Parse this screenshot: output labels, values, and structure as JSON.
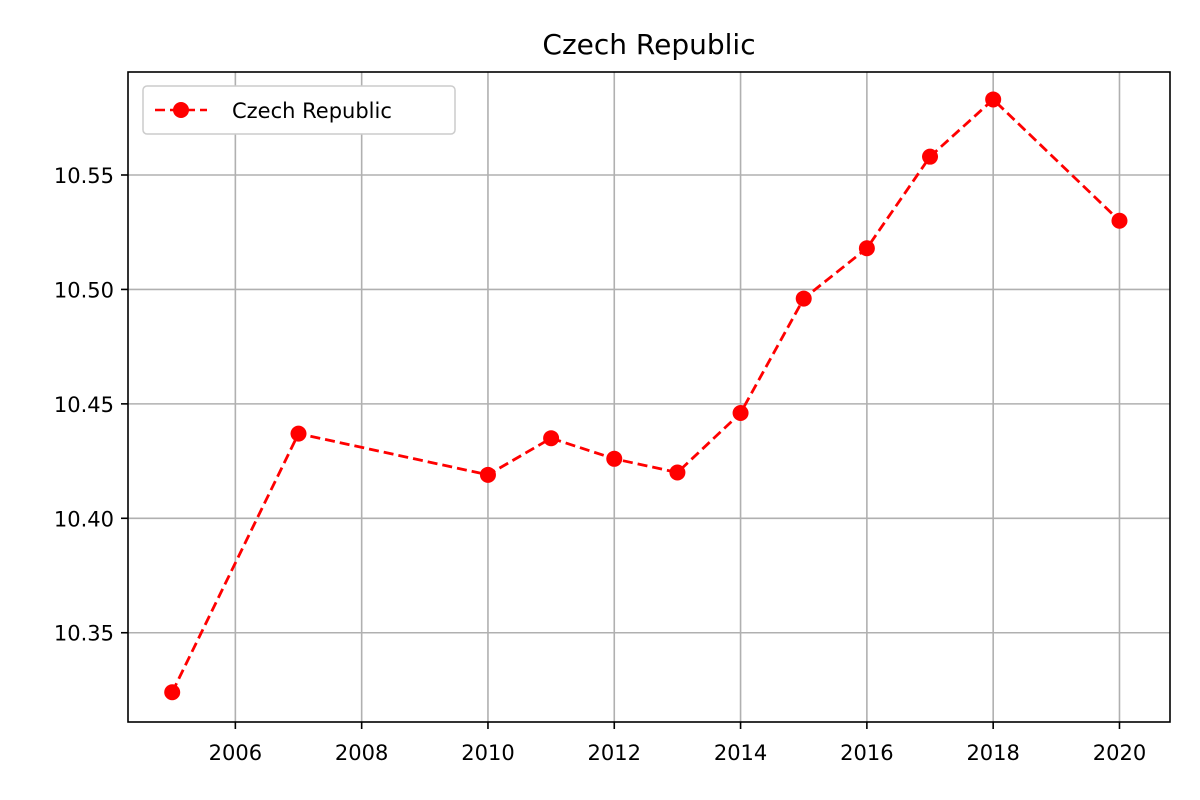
{
  "chart_data": {
    "type": "line",
    "title": "Czech Republic",
    "xlabel": "",
    "ylabel": "",
    "x_ticks": [
      2006,
      2008,
      2010,
      2012,
      2014,
      2016,
      2018,
      2020
    ],
    "y_ticks": [
      "10.35",
      "10.40",
      "10.45",
      "10.50",
      "10.55"
    ],
    "xlim": [
      2004.3,
      2020.8
    ],
    "ylim": [
      10.311,
      10.595
    ],
    "grid": true,
    "legend_position": "top-left",
    "series": [
      {
        "name": "Czech Republic",
        "color": "#ff0000",
        "line_style": "dashed",
        "marker": "circle",
        "x": [
          2005,
          2007,
          2010,
          2011,
          2012,
          2013,
          2014,
          2015,
          2016,
          2017,
          2018,
          2020
        ],
        "y": [
          10.324,
          10.437,
          10.419,
          10.435,
          10.426,
          10.42,
          10.446,
          10.496,
          10.518,
          10.558,
          10.583,
          10.53
        ]
      }
    ]
  }
}
